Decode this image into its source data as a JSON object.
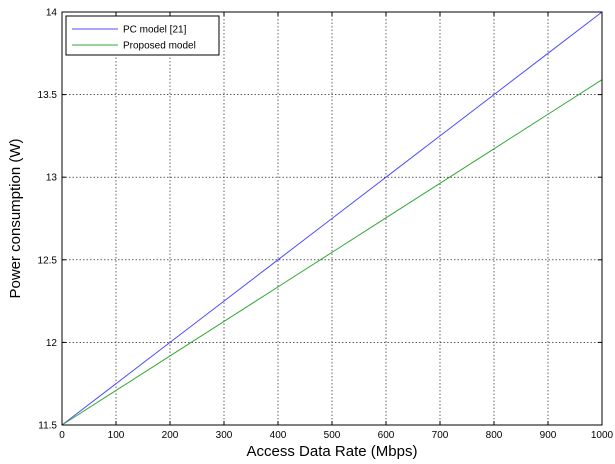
{
  "chart_data": {
    "type": "line",
    "title": "",
    "xlabel": "Access Data Rate (Mbps)",
    "ylabel": "Power consumption (W)",
    "xlim": [
      0,
      1000
    ],
    "ylim": [
      11.5,
      14
    ],
    "x_ticks": [
      "0",
      "100",
      "200",
      "300",
      "400",
      "500",
      "600",
      "700",
      "800",
      "900",
      "1000"
    ],
    "y_ticks": [
      "11.5",
      "12",
      "12.5",
      "13",
      "13.5",
      "14"
    ],
    "grid": true,
    "legend_position": "top-left",
    "x": [
      0,
      100,
      200,
      300,
      400,
      500,
      600,
      700,
      800,
      900,
      1000
    ],
    "series": [
      {
        "name": "PC model [21]",
        "color": "#4d4dff",
        "values": [
          11.5,
          11.75,
          12.0,
          12.25,
          12.5,
          12.75,
          13.0,
          13.25,
          13.5,
          13.75,
          14.0
        ]
      },
      {
        "name": "Proposed model",
        "color": "#33a833",
        "values": [
          11.5,
          11.709,
          11.918,
          12.127,
          12.336,
          12.545,
          12.754,
          12.963,
          13.172,
          13.381,
          13.59
        ]
      }
    ]
  }
}
